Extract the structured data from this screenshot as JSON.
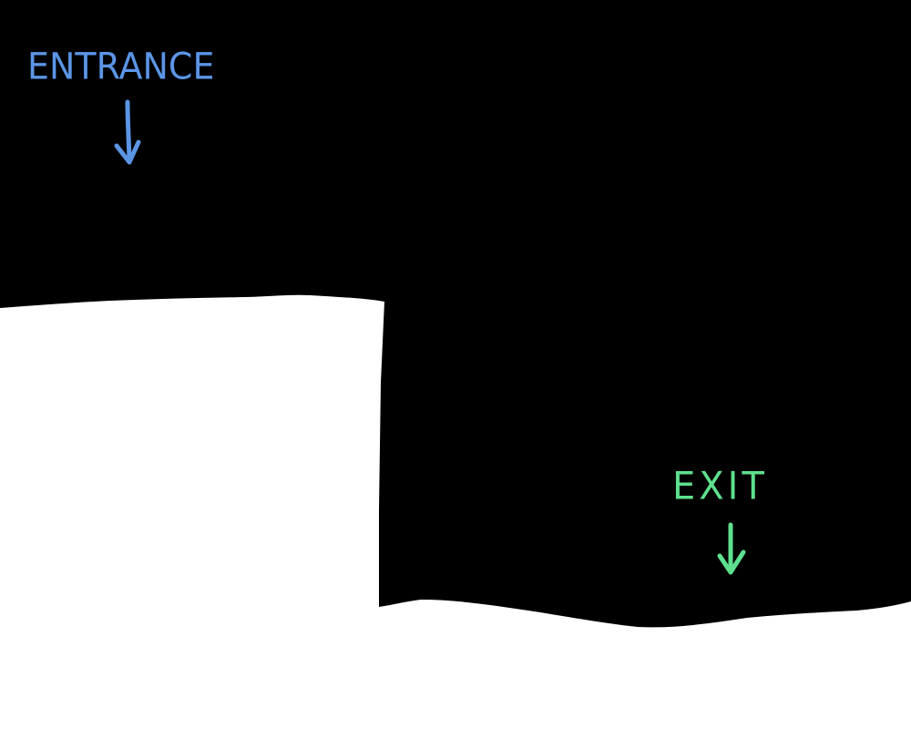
{
  "level": {
    "entrance": {
      "label": "ENTRANCE",
      "color": "#5b95e6",
      "icon": "arrow-down-icon"
    },
    "exit": {
      "label": "EXIT",
      "color": "#5ee08e",
      "icon": "arrow-down-icon"
    },
    "colors": {
      "background": "#000000",
      "terrain": "#ffffff"
    }
  }
}
